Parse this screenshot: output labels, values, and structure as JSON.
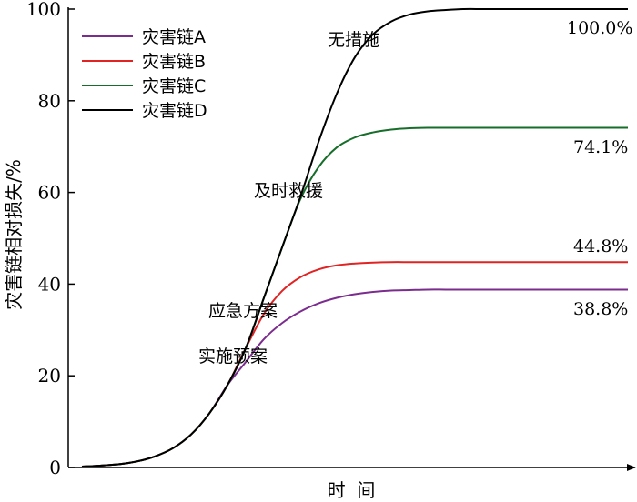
{
  "chart_data": {
    "type": "line",
    "xlabel": "时  间",
    "ylabel": "灾害链相对损失/%",
    "ylim": [
      0,
      100
    ],
    "yticks": [
      0,
      20,
      40,
      60,
      80,
      100
    ],
    "grid": false,
    "legend_position": "top-left",
    "x_has_ticks": false,
    "series": [
      {
        "name": "灾害链A",
        "color": "#7b2d8e",
        "final_label": "38.8%",
        "x": [
          0,
          20,
          40,
          60,
          80,
          100,
          120,
          140,
          160,
          180,
          200,
          220,
          240,
          260,
          280,
          300,
          320,
          340,
          360,
          380,
          400,
          420,
          440,
          460,
          480,
          500,
          520,
          540,
          560,
          580,
          600
        ],
        "y": [
          0.2,
          0.4,
          0.7,
          1.3,
          2.4,
          4.2,
          7.2,
          11.8,
          18.0,
          23.0,
          28.0,
          31.5,
          34.0,
          35.8,
          37.0,
          37.8,
          38.3,
          38.6,
          38.7,
          38.8,
          38.8,
          38.8,
          38.8,
          38.8,
          38.8,
          38.8,
          38.8,
          38.8,
          38.8,
          38.8,
          38.8
        ]
      },
      {
        "name": "灾害链B",
        "color": "#e02424",
        "final_label": "44.8%",
        "x": [
          0,
          20,
          40,
          60,
          80,
          100,
          120,
          140,
          160,
          180,
          200,
          220,
          240,
          260,
          280,
          300,
          320,
          340,
          360,
          380,
          400,
          420,
          440,
          460,
          480,
          500,
          520,
          540,
          560,
          580,
          600
        ],
        "y": [
          0.2,
          0.4,
          0.7,
          1.3,
          2.4,
          4.2,
          7.2,
          11.8,
          18.0,
          26.0,
          33.5,
          38.5,
          41.5,
          43.2,
          44.1,
          44.5,
          44.7,
          44.8,
          44.8,
          44.8,
          44.8,
          44.8,
          44.8,
          44.8,
          44.8,
          44.8,
          44.8,
          44.8,
          44.8,
          44.8,
          44.8
        ]
      },
      {
        "name": "灾害链C",
        "color": "#176e2a",
        "final_label": "74.1%",
        "x": [
          0,
          20,
          40,
          60,
          80,
          100,
          120,
          140,
          160,
          180,
          200,
          220,
          240,
          260,
          280,
          300,
          320,
          340,
          360,
          380,
          400,
          420,
          440,
          460,
          480,
          500,
          520,
          540,
          560,
          580,
          600
        ],
        "y": [
          0.2,
          0.4,
          0.7,
          1.3,
          2.4,
          4.2,
          7.2,
          11.8,
          18.0,
          26.0,
          37.0,
          48.0,
          58.5,
          65.5,
          69.8,
          72.0,
          73.1,
          73.7,
          74.0,
          74.1,
          74.1,
          74.1,
          74.1,
          74.1,
          74.1,
          74.1,
          74.1,
          74.1,
          74.1,
          74.1,
          74.1
        ]
      },
      {
        "name": "灾害链D",
        "color": "#000000",
        "final_label": "100.0%",
        "x": [
          0,
          20,
          40,
          60,
          80,
          100,
          120,
          140,
          160,
          180,
          200,
          220,
          240,
          260,
          280,
          300,
          320,
          340,
          360,
          380,
          400,
          420,
          440,
          460,
          480,
          500,
          520,
          540,
          560,
          580,
          600
        ],
        "y": [
          0.2,
          0.4,
          0.7,
          1.3,
          2.4,
          4.2,
          7.2,
          11.8,
          18.0,
          26.0,
          37.0,
          48.0,
          59.0,
          71.0,
          81.5,
          89.5,
          94.5,
          97.3,
          98.8,
          99.5,
          99.8,
          100.0,
          100.0,
          100.0,
          100.0,
          100.0,
          100.0,
          100.0,
          100.0,
          100.0,
          100.0
        ]
      }
    ],
    "annotations": [
      "无措施",
      "及时救援",
      "应急方案",
      "实施预案"
    ],
    "xlim": [
      0,
      600
    ]
  }
}
